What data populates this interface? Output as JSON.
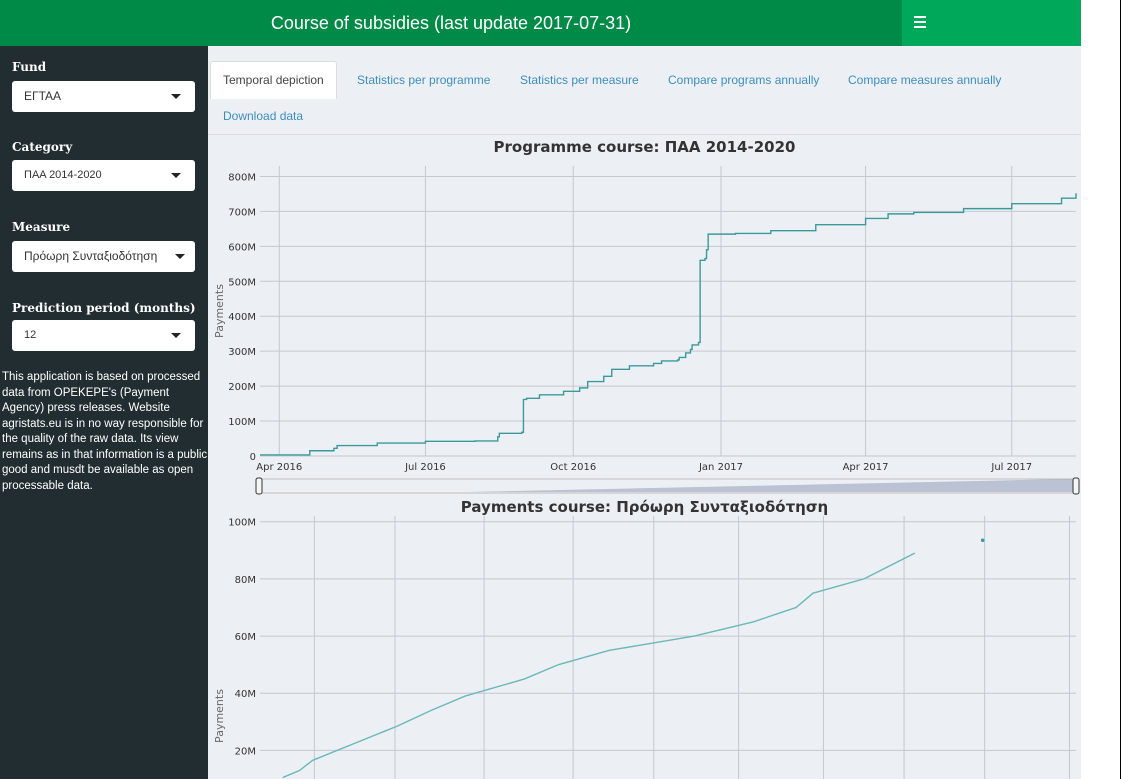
{
  "header": {
    "title": "Course of subsidies (last update 2017-07-31)"
  },
  "sidebar": {
    "fund_label": "Fund",
    "fund_value": "ΕΓΤΑΑ",
    "category_label": "Category",
    "category_value": "ΠΑΑ 2014-2020",
    "measure_label": "Measure",
    "measure_value": "Πρόωρη Συνταξιοδότηση",
    "period_label": "Prediction period (months)",
    "period_value": "12",
    "note": "This application is based on processed data from OPEKEPE's (Payment Agency) press releases. Website agristats.eu is in no way responsible for the quality of the raw data. Its view remains as in that information is a public good and musdt be available as open processable data."
  },
  "tabs": [
    "Temporal depiction",
    "Statistics per programme",
    "Statistics per measure",
    "Compare programs annually",
    "Compare measures annually",
    "Download data"
  ],
  "colors": {
    "line": "#3a9a9a",
    "line_light": "#6ab8b8",
    "header": "#008a47",
    "sidebar": "#222d32"
  },
  "chart_data": [
    {
      "type": "line",
      "title": "Programme course: ΠΑΑ 2014-2020",
      "ylabel": "Payments",
      "y_ticks": [
        "0",
        "100M",
        "200M",
        "300M",
        "400M",
        "500M",
        "600M",
        "700M",
        "800M"
      ],
      "x_ticks": [
        "Apr 2016",
        "Jul 2016",
        "Oct 2016",
        "Jan 2017",
        "Apr 2017",
        "Jul 2017"
      ],
      "ylim": [
        0,
        830000000
      ],
      "xlim": [
        "2016-03-20",
        "2017-08-10"
      ],
      "series": [
        {
          "x": [
            "2016-03-20",
            "2016-04-20",
            "2016-05-05",
            "2016-05-07",
            "2016-06-01",
            "2016-07-01",
            "2016-08-01",
            "2016-08-15",
            "2016-08-16",
            "2016-08-30",
            "2016-08-31",
            "2016-09-02",
            "2016-09-10",
            "2016-09-25",
            "2016-10-05",
            "2016-10-10",
            "2016-10-20",
            "2016-10-25",
            "2016-11-05",
            "2016-11-20",
            "2016-11-25",
            "2016-12-05",
            "2016-12-06",
            "2016-12-10",
            "2016-12-13",
            "2016-12-14",
            "2016-12-18",
            "2016-12-19",
            "2016-12-22",
            "2016-12-23",
            "2016-12-24",
            "2017-01-10",
            "2017-02-01",
            "2017-03-01",
            "2017-04-01",
            "2017-04-15",
            "2017-05-01",
            "2017-06-01",
            "2017-07-01",
            "2017-08-01",
            "2017-08-10"
          ],
          "y": [
            3000000,
            15000000,
            22000000,
            30000000,
            37000000,
            42000000,
            43000000,
            55000000,
            65000000,
            68000000,
            162000000,
            165000000,
            175000000,
            185000000,
            195000000,
            213000000,
            228000000,
            248000000,
            258000000,
            265000000,
            272000000,
            275000000,
            282000000,
            295000000,
            305000000,
            318000000,
            325000000,
            560000000,
            565000000,
            590000000,
            635000000,
            637000000,
            645000000,
            662000000,
            680000000,
            693000000,
            697000000,
            708000000,
            722000000,
            738000000,
            752000000
          ]
        }
      ]
    },
    {
      "type": "line",
      "title": "Payments course: Πρόωρη Συνταξιοδότηση",
      "ylabel": "Payments",
      "y_ticks": [
        "20M",
        "40M",
        "60M",
        "80M",
        "100M"
      ],
      "ylim": [
        10000000,
        102000000
      ],
      "x_index": [
        0,
        1,
        2,
        3,
        4,
        5,
        6,
        7,
        8,
        9,
        10,
        11,
        12,
        13
      ],
      "series": [
        {
          "x": [
            0.15,
            0.35,
            0.5,
            1.0,
            1.5,
            1.9,
            2.3,
            3.0,
            3.4,
            4.0,
            5.0,
            5.7,
            6.0,
            6.2,
            6.4,
            7.0,
            7.6
          ],
          "y": [
            10500000,
            13000000,
            16500000,
            22500000,
            28500000,
            34000000,
            39000000,
            45000000,
            50000000,
            55000000,
            60000000,
            65000000,
            68000000,
            70000000,
            75000000,
            80000000,
            89000000
          ]
        },
        {
          "x": [
            8.4
          ],
          "y": [
            93500000
          ]
        }
      ]
    }
  ]
}
